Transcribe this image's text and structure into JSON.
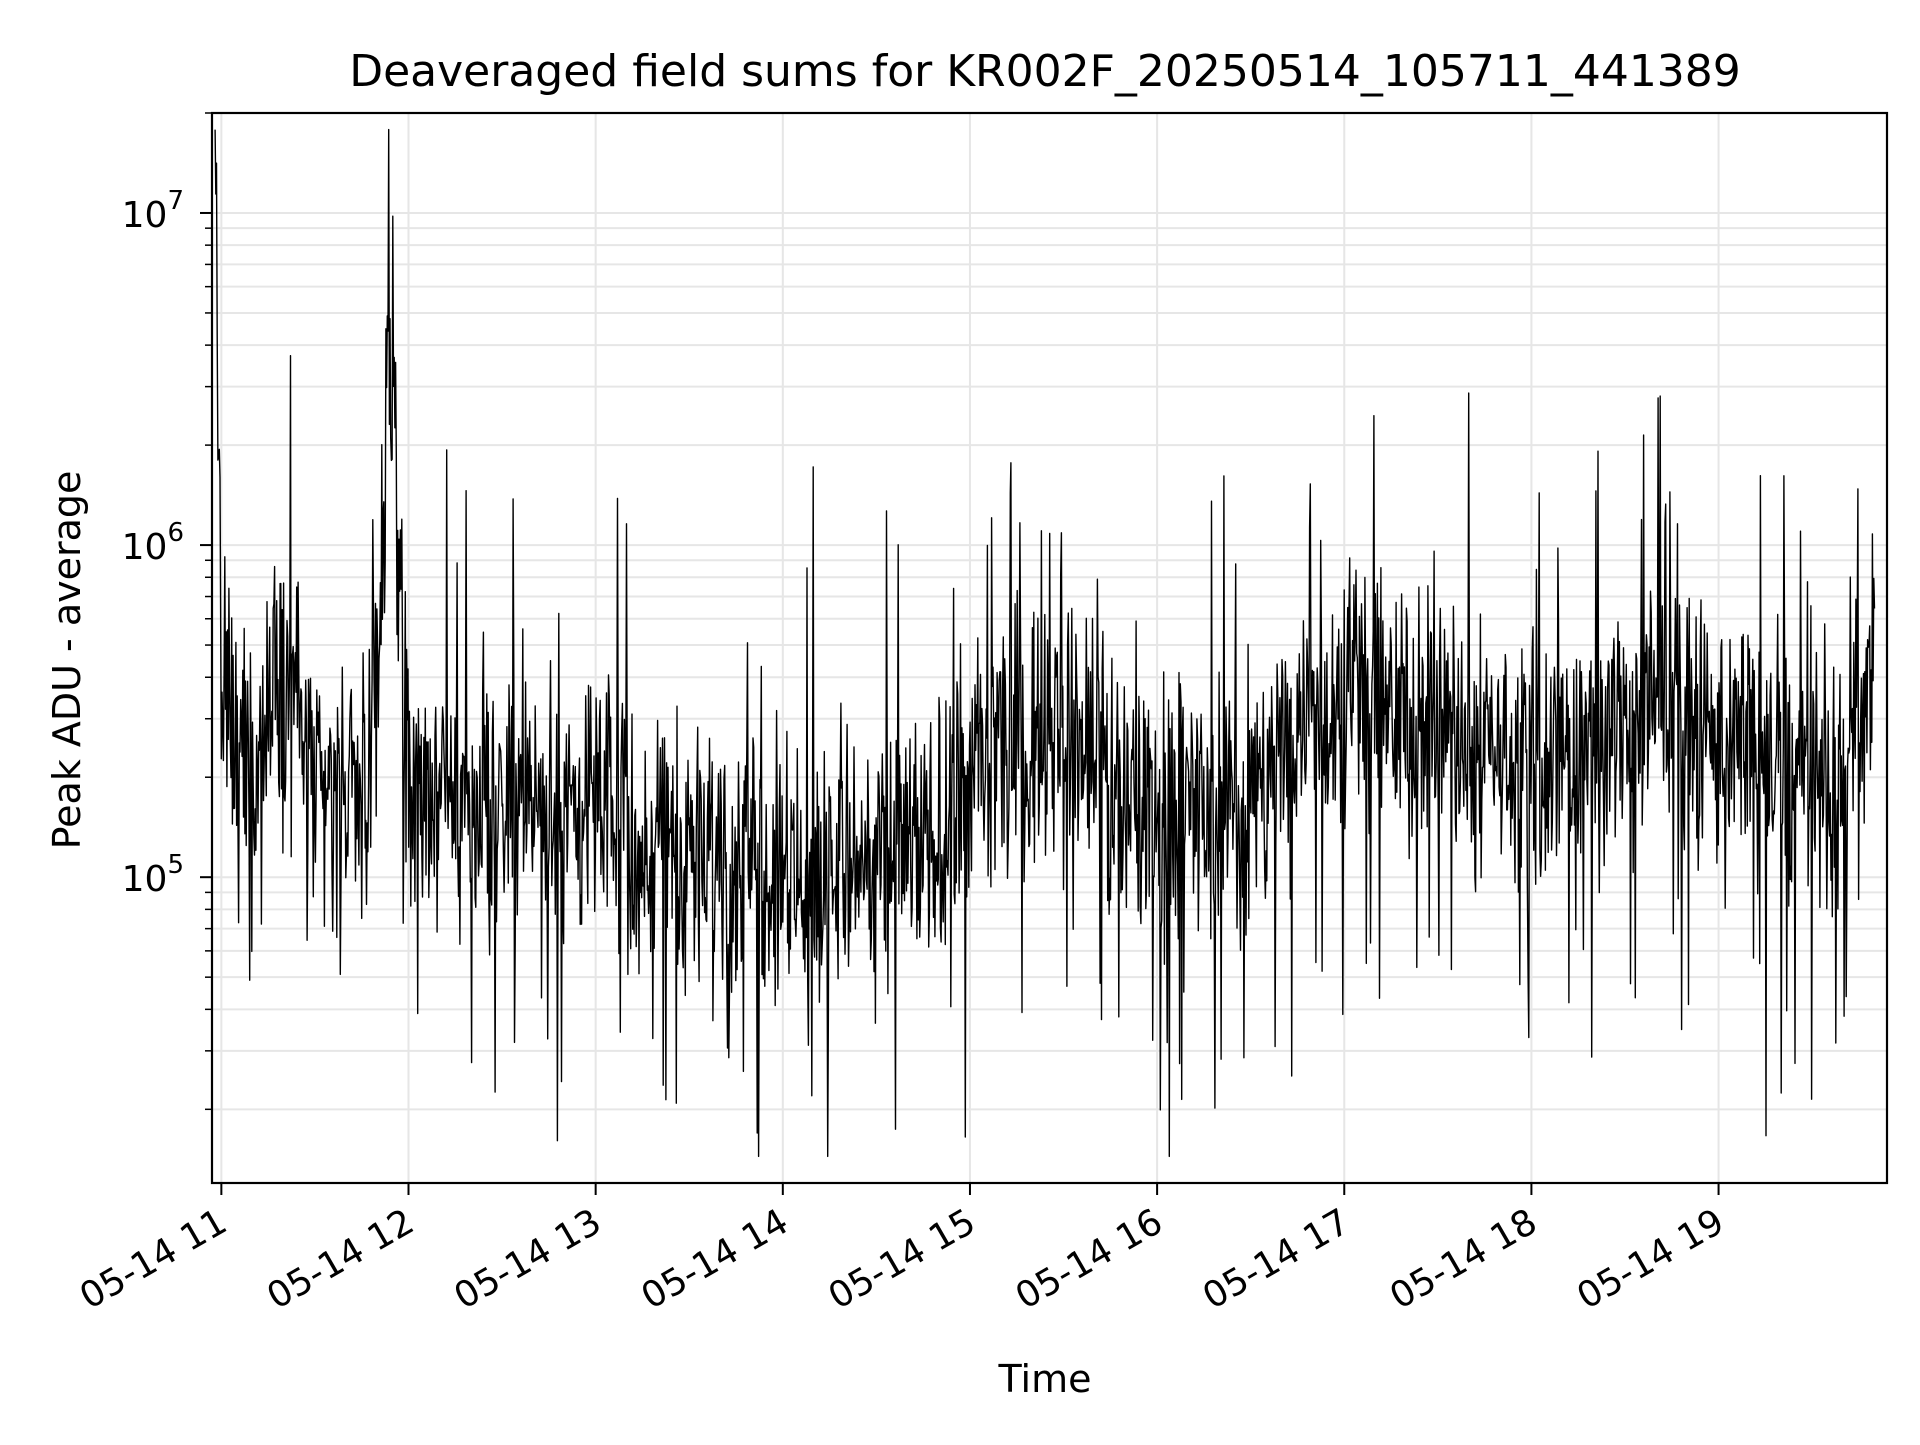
{
  "chart_data": {
    "type": "line",
    "title": "Deaveraged field sums for KR002F_20250514_105711_441389",
    "xlabel": "Time",
    "ylabel": "Peak ADU - average",
    "x_scale": "time",
    "y_scale": "log",
    "xlim": [
      "2025-05-14 10:57:00",
      "2025-05-14 19:54:00"
    ],
    "ylim": [
      12000,
      20000000
    ],
    "x_ticks": [
      "05-14 11",
      "05-14 12",
      "05-14 13",
      "05-14 14",
      "05-14 15",
      "05-14 16",
      "05-14 17",
      "05-14 18",
      "05-14 19"
    ],
    "y_ticks": [
      {
        "base": "10",
        "exp": "5",
        "value": 100000
      },
      {
        "base": "10",
        "exp": "6",
        "value": 1000000
      },
      {
        "base": "10",
        "exp": "7",
        "value": 10000000
      }
    ],
    "grid": true,
    "line_color": "#000000",
    "series": [
      {
        "x": [
          "2025-05-14 10:58",
          "2025-05-14 11:00",
          "2025-05-14 11:06",
          "2025-05-14 11:12",
          "2025-05-14 11:18",
          "2025-05-14 11:24",
          "2025-05-14 11:30",
          "2025-05-14 11:36",
          "2025-05-14 11:42",
          "2025-05-14 11:48",
          "2025-05-14 11:54",
          "2025-05-14 12:00",
          "2025-05-14 12:10",
          "2025-05-14 12:20",
          "2025-05-14 12:30",
          "2025-05-14 12:40",
          "2025-05-14 12:50",
          "2025-05-14 13:00",
          "2025-05-14 13:15",
          "2025-05-14 13:30",
          "2025-05-14 13:45",
          "2025-05-14 14:00",
          "2025-05-14 14:15",
          "2025-05-14 14:30",
          "2025-05-14 14:45",
          "2025-05-14 15:00",
          "2025-05-14 15:15",
          "2025-05-14 15:30",
          "2025-05-14 15:45",
          "2025-05-14 16:00",
          "2025-05-14 16:15",
          "2025-05-14 16:30",
          "2025-05-14 16:45",
          "2025-05-14 17:00",
          "2025-05-14 17:15",
          "2025-05-14 17:30",
          "2025-05-14 17:45",
          "2025-05-14 18:00",
          "2025-05-14 18:15",
          "2025-05-14 18:30",
          "2025-05-14 18:45",
          "2025-05-14 19:00",
          "2025-05-14 19:15",
          "2025-05-14 19:30",
          "2025-05-14 19:40",
          "2025-05-14 19:50"
        ],
        "y": [
          14000000,
          300000,
          250000,
          220000,
          450000,
          350000,
          180000,
          170000,
          200000,
          190000,
          3000000,
          200000,
          180000,
          175000,
          170000,
          165000,
          160000,
          155000,
          140000,
          120000,
          110000,
          100000,
          110000,
          115000,
          120000,
          200000,
          250000,
          300000,
          200000,
          150000,
          160000,
          165000,
          300000,
          350000,
          300000,
          280000,
          250000,
          220000,
          230000,
          260000,
          300000,
          280000,
          230000,
          180000,
          170000,
          550000
        ]
      }
    ]
  }
}
